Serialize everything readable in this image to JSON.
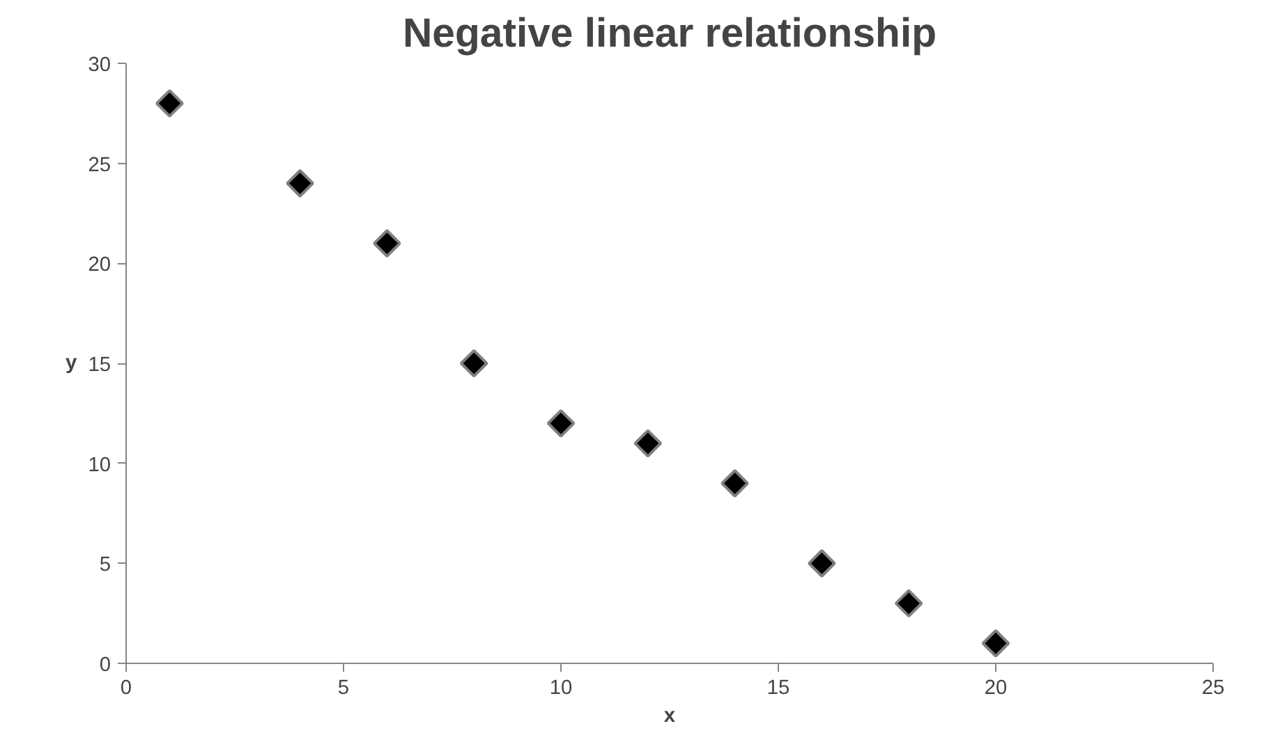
{
  "chart_data": {
    "type": "scatter",
    "title": "Negative linear relationship",
    "xlabel": "x",
    "ylabel": "y",
    "x": [
      1,
      4,
      6,
      8,
      10,
      12,
      14,
      16,
      18,
      20
    ],
    "values": [
      28,
      24,
      21,
      15,
      12,
      11,
      9,
      5,
      3,
      1
    ],
    "color": "#000000",
    "marker": "diamond",
    "grid": false,
    "xlim": [
      0,
      25
    ],
    "xticks": [
      0,
      5,
      10,
      15,
      20,
      25
    ],
    "ylim": [
      0,
      30
    ],
    "yticks": [
      0,
      5,
      10,
      15,
      20,
      25,
      30
    ]
  }
}
